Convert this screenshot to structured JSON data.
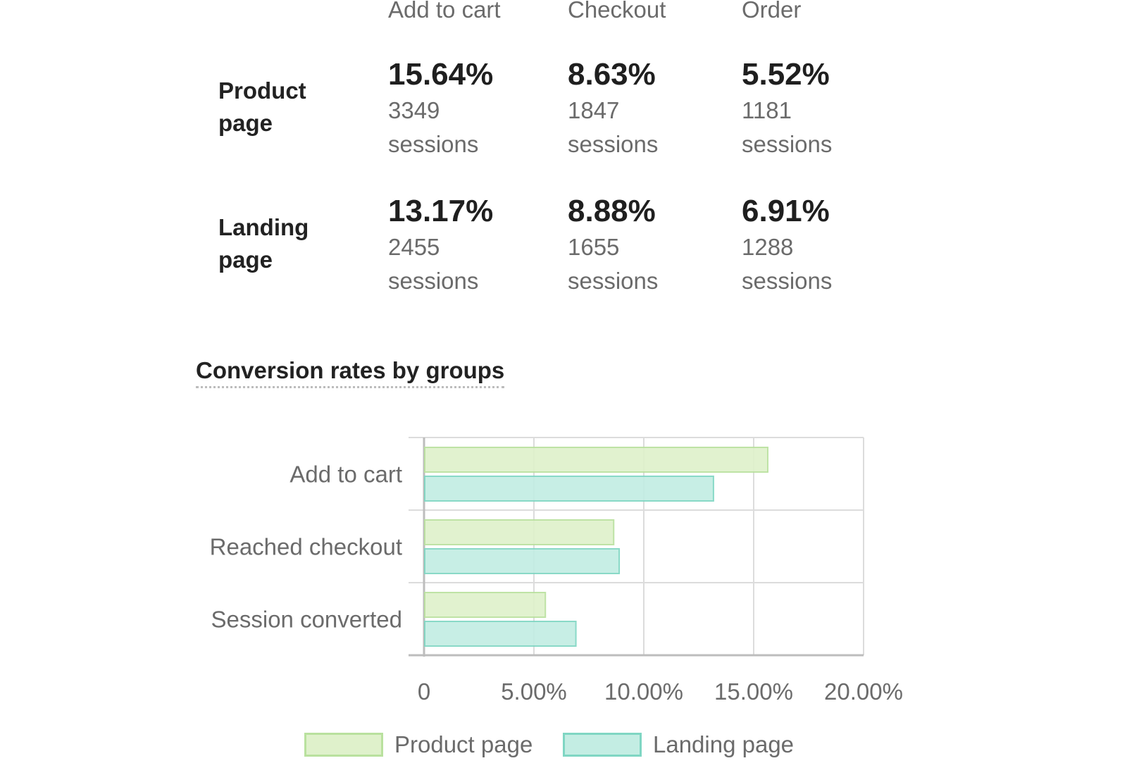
{
  "columns": [
    "Add to cart",
    "Checkout",
    "Order"
  ],
  "rows": [
    {
      "label_line1": "Product",
      "label_line2": "page",
      "cells": [
        {
          "pct": "15.64%",
          "count": "3349",
          "unit": "sessions"
        },
        {
          "pct": "8.63%",
          "count": "1847",
          "unit": "sessions"
        },
        {
          "pct": "5.52%",
          "count": "1181",
          "unit": "sessions"
        }
      ]
    },
    {
      "label_line1": "Landing",
      "label_line2": "page",
      "cells": [
        {
          "pct": "13.17%",
          "count": "2455",
          "unit": "sessions"
        },
        {
          "pct": "8.88%",
          "count": "1655",
          "unit": "sessions"
        },
        {
          "pct": "6.91%",
          "count": "1288",
          "unit": "sessions"
        }
      ]
    }
  ],
  "section_title": "Conversion rates by groups",
  "chart_data": {
    "type": "bar",
    "orientation": "horizontal",
    "categories": [
      "Add to cart",
      "Reached checkout",
      "Session converted"
    ],
    "series": [
      {
        "name": "Product page",
        "values": [
          15.64,
          8.63,
          5.52
        ],
        "fill": "#dff1cb",
        "stroke": "#b9e19e"
      },
      {
        "name": "Landing page",
        "values": [
          13.17,
          8.88,
          6.91
        ],
        "fill": "#c3ede3",
        "stroke": "#7fd6c3"
      }
    ],
    "xlim": [
      0,
      20
    ],
    "xticks": [
      0,
      5,
      10,
      15,
      20
    ],
    "xtick_labels": [
      "0",
      "5.00%",
      "10.00%",
      "15.00%",
      "20.00%"
    ],
    "grid": true,
    "legend": "bottom"
  }
}
